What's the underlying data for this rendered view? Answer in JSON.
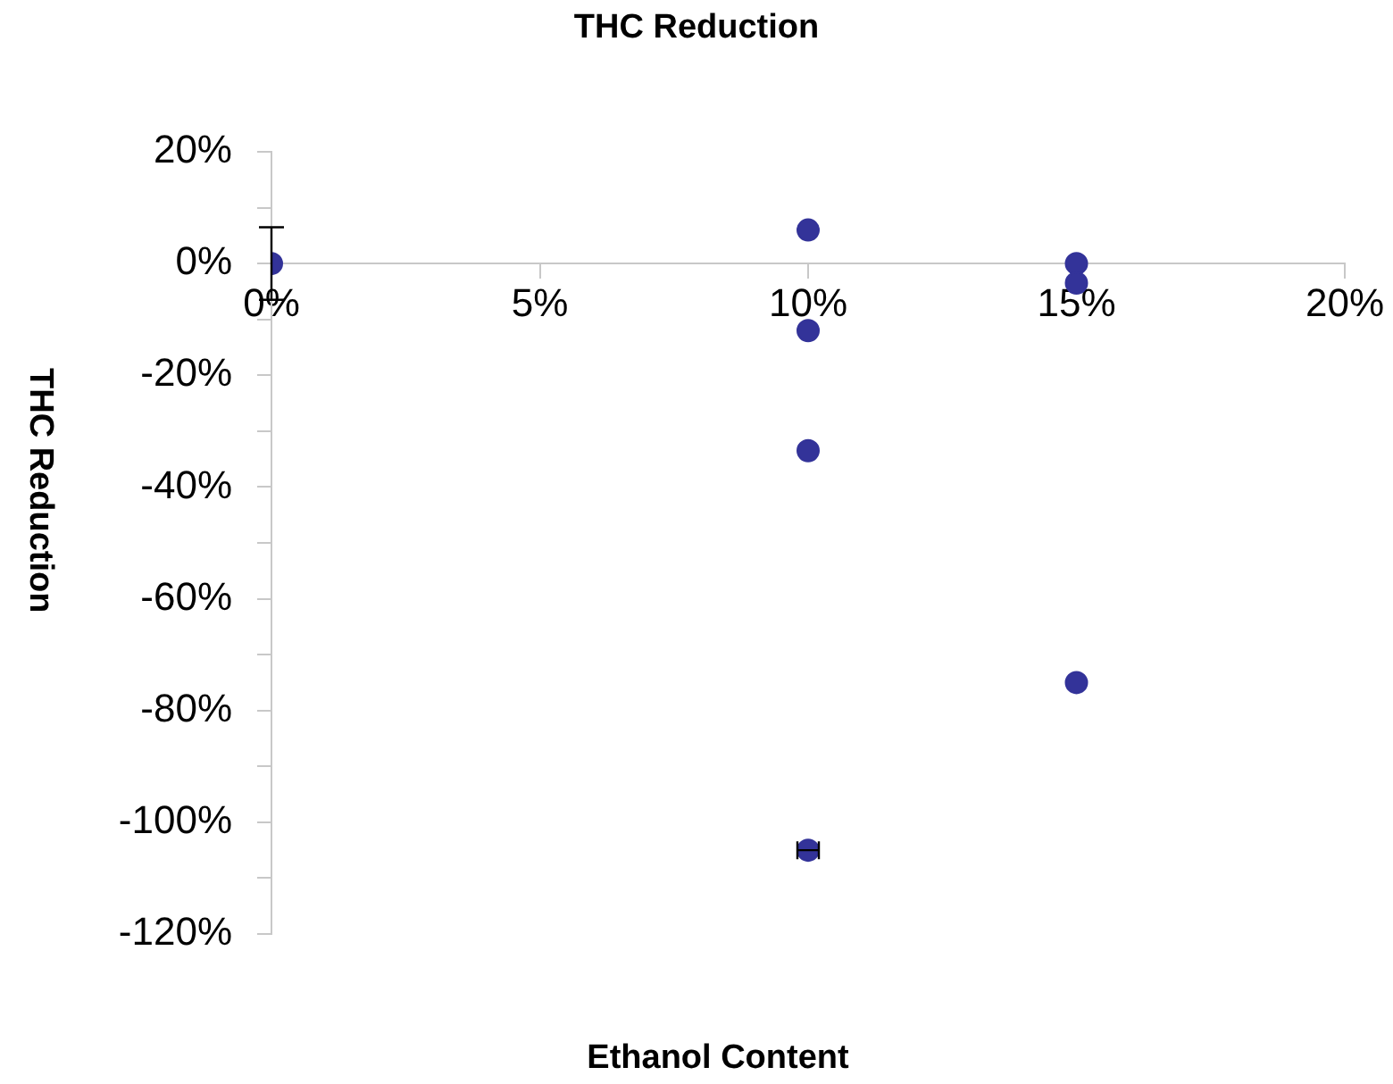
{
  "chart_data": {
    "type": "scatter",
    "title": "THC Reduction",
    "xlabel": "Ethanol Content",
    "ylabel": "THC Reduction",
    "x": [
      0,
      10,
      10,
      10,
      10,
      15,
      15,
      15
    ],
    "values": [
      0,
      6,
      -12,
      -33.5,
      -105,
      0,
      -3.5,
      -75
    ],
    "errors": [
      6.5,
      null,
      null,
      null,
      null,
      null,
      null,
      null
    ],
    "xerrors": [
      null,
      null,
      null,
      null,
      0.2,
      null,
      null,
      null
    ],
    "color": "#333399",
    "marker": "circle",
    "xlim": [
      0,
      20
    ],
    "xticks": [
      {
        "value": 0,
        "label": "0%"
      },
      {
        "value": 5,
        "label": "5%"
      },
      {
        "value": 10,
        "label": "10%"
      },
      {
        "value": 15,
        "label": "15%"
      },
      {
        "value": 20,
        "label": "20%"
      }
    ],
    "ylim": [
      -120,
      20
    ],
    "yticks": [
      {
        "value": -120,
        "label": "-120%"
      },
      {
        "value": -110,
        "label": null
      },
      {
        "value": -100,
        "label": "-100%"
      },
      {
        "value": -90,
        "label": null
      },
      {
        "value": -80,
        "label": "-80%"
      },
      {
        "value": -70,
        "label": null
      },
      {
        "value": -60,
        "label": "-60%"
      },
      {
        "value": -50,
        "label": null
      },
      {
        "value": -40,
        "label": "-40%"
      },
      {
        "value": -30,
        "label": null
      },
      {
        "value": -20,
        "label": "-20%"
      },
      {
        "value": -10,
        "label": null
      },
      {
        "value": 0,
        "label": "0%"
      },
      {
        "value": 10,
        "label": null
      },
      {
        "value": 20,
        "label": "20%"
      }
    ]
  }
}
